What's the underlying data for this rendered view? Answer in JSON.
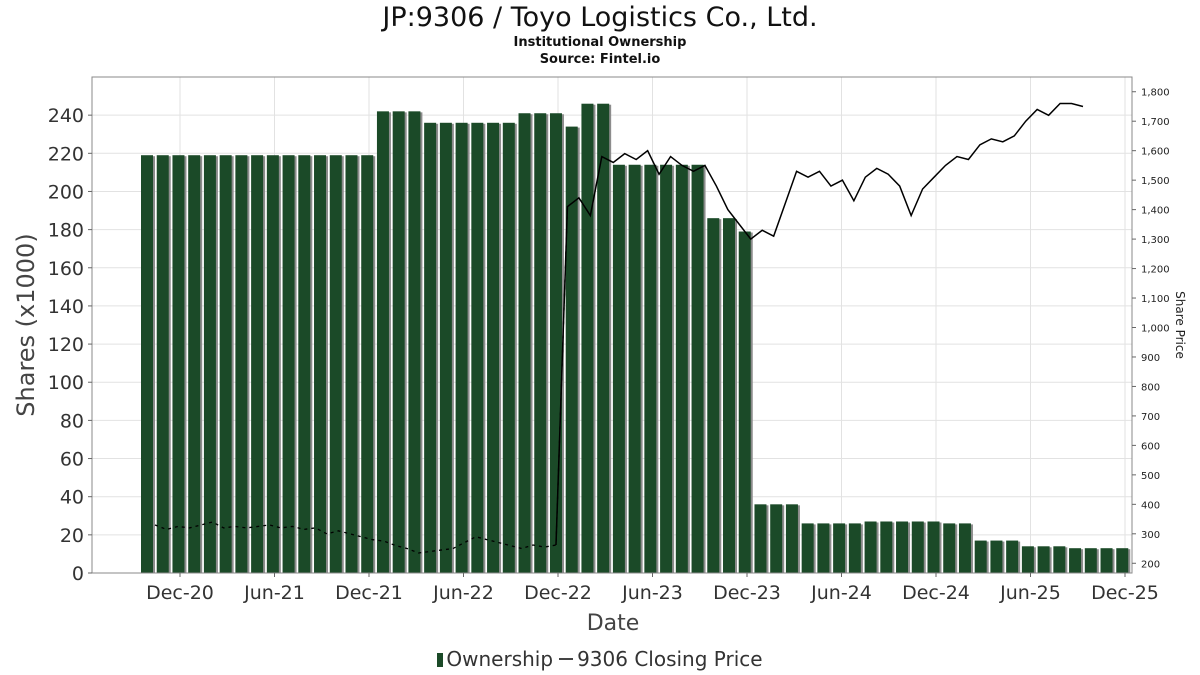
{
  "header": {
    "title": "JP:9306 / Toyo Logistics Co., Ltd.",
    "subtitle1": "Institutional Ownership",
    "subtitle2": "Source: Fintel.io"
  },
  "legend": {
    "ownership": "Ownership",
    "price": "9306 Closing Price"
  },
  "colors": {
    "bar": "#1b4a28",
    "bar_shadow": "#8c8c8c",
    "line": "#000000",
    "grid": "#e2e2e2"
  },
  "chart_data": {
    "type": "bar",
    "xlabel": "Date",
    "ylabel": "Shares (x1000)",
    "y2label": "Share Price",
    "ylim": [
      0,
      260
    ],
    "y2lim": [
      167,
      1850
    ],
    "yticks": [
      0,
      20,
      40,
      60,
      80,
      100,
      120,
      140,
      160,
      180,
      200,
      220,
      240
    ],
    "y2ticks": [
      "200",
      "300",
      "400",
      "500",
      "600",
      "700",
      "800",
      "900",
      "1,000",
      "1,100",
      "1,200",
      "1,300",
      "1,400",
      "1,500",
      "1,600",
      "1,700",
      "1,800"
    ],
    "x_tick_labels": [
      "Dec-20",
      "Jun-21",
      "Dec-21",
      "Jun-22",
      "Dec-22",
      "Jun-23",
      "Dec-23",
      "Jun-24",
      "Dec-24",
      "Jun-25",
      "Dec-25"
    ],
    "grid": true,
    "legend_position": "bottom",
    "series": [
      {
        "name": "Ownership",
        "type": "bar",
        "values": [
          219,
          219,
          219,
          219,
          219,
          219,
          219,
          219,
          219,
          219,
          219,
          219,
          219,
          219,
          219,
          242,
          242,
          242,
          236,
          236,
          236,
          236,
          236,
          236,
          241,
          241,
          241,
          234,
          246,
          246,
          214,
          214,
          214,
          214,
          214,
          214,
          186,
          186,
          179,
          36,
          36,
          36,
          26,
          26,
          26,
          26,
          27,
          27,
          27,
          27,
          27,
          26,
          26,
          17,
          17,
          17,
          14,
          14,
          14,
          13,
          13,
          13,
          13
        ]
      },
      {
        "name": "9306 Closing Price",
        "type": "line",
        "values": [
          330,
          315,
          325,
          320,
          330,
          340,
          320,
          325,
          320,
          325,
          330,
          320,
          325,
          315,
          320,
          300,
          310,
          300,
          290,
          280,
          275,
          260,
          250,
          235,
          240,
          245,
          250,
          270,
          290,
          280,
          270,
          260,
          250,
          262,
          255,
          262,
          1410,
          1440,
          1380,
          1580,
          1560,
          1590,
          1570,
          1600,
          1520,
          1580,
          1550,
          1530,
          1550,
          1480,
          1400,
          1350,
          1300,
          1330,
          1310,
          1420,
          1530,
          1510,
          1530,
          1480,
          1500,
          1430,
          1510,
          1540,
          1520,
          1480,
          1380,
          1470,
          1510,
          1550,
          1580,
          1570,
          1620,
          1640,
          1630,
          1650,
          1700,
          1740,
          1720,
          1760,
          1760,
          1750
        ]
      }
    ]
  }
}
